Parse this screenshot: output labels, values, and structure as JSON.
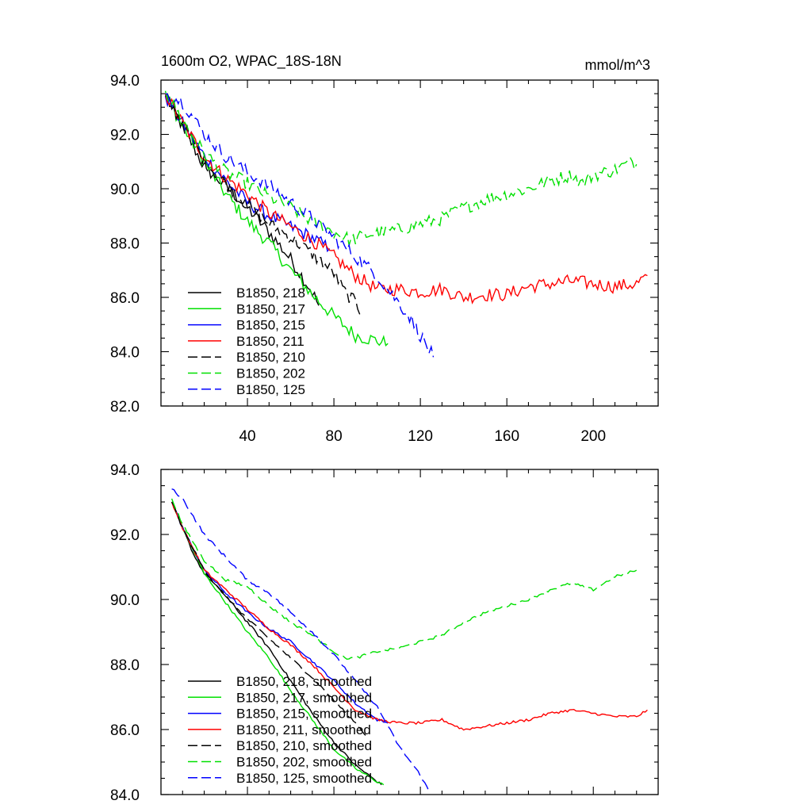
{
  "chart_data": [
    {
      "type": "line",
      "title": "1600m O2, WPAC_18S-18N",
      "units": "mmol/m^3",
      "xlabel": "",
      "ylabel": "",
      "xlim": [
        0,
        230
      ],
      "ylim": [
        82,
        94
      ],
      "x_major_ticks": [
        40,
        80,
        120,
        160,
        200
      ],
      "x_tick_labels": [
        "40",
        "80",
        "120",
        "160",
        "200"
      ],
      "y_major_ticks": [
        82,
        84,
        86,
        88,
        90,
        92,
        94
      ],
      "y_tick_labels": [
        "82.0",
        "84.0",
        "86.0",
        "88.0",
        "90.0",
        "92.0",
        "94.0"
      ],
      "legend_position": "bottom-left",
      "noise": 0.25,
      "series": [
        {
          "name": "B1850, 218",
          "color": "#000000",
          "dash": "solid",
          "points": [
            [
              2,
              93.4
            ],
            [
              10,
              92.3
            ],
            [
              20,
              90.8
            ],
            [
              30,
              90.1
            ],
            [
              40,
              89.3
            ],
            [
              50,
              88.4
            ],
            [
              60,
              87.4
            ],
            [
              65,
              86.8
            ],
            [
              70,
              86.2
            ],
            [
              73,
              85.7
            ]
          ]
        },
        {
          "name": "B1850, 217",
          "color": "#00e000",
          "dash": "solid",
          "points": [
            [
              2,
              93.5
            ],
            [
              10,
              92.3
            ],
            [
              20,
              91.0
            ],
            [
              30,
              89.8
            ],
            [
              40,
              88.8
            ],
            [
              50,
              88.0
            ],
            [
              60,
              87.0
            ],
            [
              70,
              86.1
            ],
            [
              80,
              85.3
            ],
            [
              90,
              84.6
            ],
            [
              100,
              84.4
            ],
            [
              105,
              84.3
            ]
          ]
        },
        {
          "name": "B1850, 215",
          "color": "#0000ff",
          "dash": "solid",
          "points": [
            [
              2,
              93.4
            ],
            [
              10,
              92.4
            ],
            [
              20,
              91.2
            ],
            [
              30,
              90.3
            ],
            [
              40,
              89.5
            ],
            [
              50,
              89.0
            ],
            [
              60,
              88.6
            ],
            [
              70,
              88.2
            ],
            [
              78,
              87.8
            ]
          ]
        },
        {
          "name": "B1850, 211",
          "color": "#ff0000",
          "dash": "solid",
          "points": [
            [
              2,
              93.5
            ],
            [
              10,
              92.4
            ],
            [
              20,
              91.2
            ],
            [
              30,
              90.4
            ],
            [
              40,
              89.8
            ],
            [
              50,
              89.1
            ],
            [
              60,
              88.6
            ],
            [
              70,
              88.1
            ],
            [
              80,
              87.5
            ],
            [
              90,
              86.8
            ],
            [
              100,
              86.3
            ],
            [
              110,
              86.3
            ],
            [
              120,
              86.2
            ],
            [
              130,
              86.3
            ],
            [
              140,
              86.0
            ],
            [
              150,
              86.1
            ],
            [
              160,
              86.1
            ],
            [
              170,
              86.4
            ],
            [
              180,
              86.5
            ],
            [
              190,
              86.6
            ],
            [
              200,
              86.5
            ],
            [
              210,
              86.4
            ],
            [
              220,
              86.5
            ],
            [
              225,
              86.8
            ]
          ]
        },
        {
          "name": "B1850, 210",
          "color": "#000000",
          "dash": "long",
          "points": [
            [
              2,
              93.4
            ],
            [
              10,
              92.4
            ],
            [
              20,
              91.0
            ],
            [
              30,
              90.2
            ],
            [
              40,
              89.4
            ],
            [
              50,
              88.7
            ],
            [
              60,
              88.2
            ],
            [
              70,
              87.6
            ],
            [
              80,
              86.9
            ],
            [
              85,
              86.2
            ],
            [
              90,
              85.8
            ],
            [
              93,
              85.4
            ]
          ]
        },
        {
          "name": "B1850, 202",
          "color": "#00e000",
          "dash": "long",
          "points": [
            [
              2,
              93.6
            ],
            [
              10,
              92.5
            ],
            [
              20,
              91.3
            ],
            [
              30,
              90.6
            ],
            [
              40,
              90.2
            ],
            [
              50,
              89.7
            ],
            [
              60,
              89.3
            ],
            [
              70,
              88.8
            ],
            [
              80,
              88.4
            ],
            [
              88,
              88.1
            ],
            [
              95,
              88.3
            ],
            [
              110,
              88.5
            ],
            [
              120,
              88.7
            ],
            [
              130,
              88.9
            ],
            [
              140,
              89.3
            ],
            [
              150,
              89.6
            ],
            [
              160,
              89.8
            ],
            [
              170,
              90.0
            ],
            [
              180,
              90.3
            ],
            [
              190,
              90.5
            ],
            [
              195,
              90.2
            ],
            [
              200,
              90.5
            ],
            [
              210,
              90.7
            ],
            [
              218,
              91.0
            ],
            [
              220,
              90.9
            ]
          ]
        },
        {
          "name": "B1850, 125",
          "color": "#0000ff",
          "dash": "long",
          "points": [
            [
              2,
              93.5
            ],
            [
              10,
              93.2
            ],
            [
              20,
              92.0
            ],
            [
              30,
              91.2
            ],
            [
              40,
              90.6
            ],
            [
              50,
              90.1
            ],
            [
              60,
              89.5
            ],
            [
              70,
              88.9
            ],
            [
              80,
              88.2
            ],
            [
              90,
              87.5
            ],
            [
              100,
              86.8
            ],
            [
              110,
              85.8
            ],
            [
              115,
              85.3
            ],
            [
              120,
              84.6
            ],
            [
              126,
              83.8
            ]
          ]
        }
      ]
    },
    {
      "type": "line",
      "title": "",
      "xlabel": "",
      "ylabel": "",
      "xlim": [
        0,
        230
      ],
      "ylim": [
        84,
        94
      ],
      "x_major_ticks": [
        40,
        80,
        120,
        160,
        200
      ],
      "y_major_ticks": [
        84,
        86,
        88,
        90,
        92,
        94
      ],
      "y_tick_labels": [
        "84.0",
        "86.0",
        "88.0",
        "90.0",
        "92.0",
        "94.0"
      ],
      "legend_position": "bottom-left",
      "noise": 0.04,
      "series": [
        {
          "name": "B1850, 218, smoothed",
          "color": "#000000",
          "dash": "solid",
          "points": [
            [
              5,
              93.0
            ],
            [
              10,
              92.2
            ],
            [
              15,
              91.4
            ],
            [
              20,
              90.8
            ],
            [
              30,
              90.1
            ],
            [
              40,
              89.3
            ],
            [
              50,
              88.5
            ],
            [
              60,
              87.5
            ],
            [
              70,
              86.5
            ],
            [
              80,
              85.6
            ],
            [
              90,
              84.9
            ],
            [
              100,
              84.4
            ],
            [
              102,
              84.3
            ]
          ]
        },
        {
          "name": "B1850, 217, smoothed",
          "color": "#00e000",
          "dash": "solid",
          "points": [
            [
              5,
              93.0
            ],
            [
              10,
              92.2
            ],
            [
              20,
              90.8
            ],
            [
              30,
              89.9
            ],
            [
              40,
              89.0
            ],
            [
              50,
              88.2
            ],
            [
              60,
              87.2
            ],
            [
              70,
              86.3
            ],
            [
              80,
              85.4
            ],
            [
              90,
              84.8
            ],
            [
              100,
              84.4
            ],
            [
              103,
              84.3
            ]
          ]
        },
        {
          "name": "B1850, 215, smoothed",
          "color": "#0000ff",
          "dash": "solid",
          "points": [
            [
              5,
              93.0
            ],
            [
              10,
              92.2
            ],
            [
              20,
              90.9
            ],
            [
              30,
              90.2
            ],
            [
              40,
              89.6
            ],
            [
              50,
              89.1
            ],
            [
              60,
              88.7
            ],
            [
              70,
              88.1
            ],
            [
              80,
              87.5
            ],
            [
              90,
              86.8
            ],
            [
              100,
              86.3
            ],
            [
              105,
              86.2
            ]
          ]
        },
        {
          "name": "B1850, 211, smoothed",
          "color": "#ff0000",
          "dash": "solid",
          "points": [
            [
              5,
              93.0
            ],
            [
              10,
              92.2
            ],
            [
              20,
              90.9
            ],
            [
              30,
              90.3
            ],
            [
              40,
              89.7
            ],
            [
              50,
              89.1
            ],
            [
              60,
              88.6
            ],
            [
              70,
              88.0
            ],
            [
              80,
              87.3
            ],
            [
              90,
              86.6
            ],
            [
              100,
              86.3
            ],
            [
              110,
              86.2
            ],
            [
              120,
              86.2
            ],
            [
              130,
              86.3
            ],
            [
              140,
              86.0
            ],
            [
              150,
              86.1
            ],
            [
              160,
              86.2
            ],
            [
              170,
              86.3
            ],
            [
              180,
              86.5
            ],
            [
              190,
              86.6
            ],
            [
              200,
              86.5
            ],
            [
              210,
              86.4
            ],
            [
              220,
              86.4
            ],
            [
              225,
              86.6
            ]
          ]
        },
        {
          "name": "B1850, 210, smoothed",
          "color": "#000000",
          "dash": "long",
          "points": [
            [
              5,
              93.0
            ],
            [
              10,
              92.2
            ],
            [
              20,
              90.9
            ],
            [
              30,
              90.1
            ],
            [
              40,
              89.4
            ],
            [
              50,
              88.8
            ],
            [
              60,
              88.2
            ],
            [
              70,
              87.6
            ],
            [
              80,
              86.9
            ],
            [
              90,
              86.2
            ],
            [
              95,
              85.8
            ]
          ]
        },
        {
          "name": "B1850, 202, smoothed",
          "color": "#00e000",
          "dash": "long",
          "points": [
            [
              5,
              93.1
            ],
            [
              10,
              92.3
            ],
            [
              20,
              91.2
            ],
            [
              30,
              90.6
            ],
            [
              40,
              90.4
            ],
            [
              50,
              89.8
            ],
            [
              60,
              89.3
            ],
            [
              70,
              88.9
            ],
            [
              80,
              88.4
            ],
            [
              85,
              88.2
            ],
            [
              90,
              88.2
            ],
            [
              100,
              88.4
            ],
            [
              110,
              88.5
            ],
            [
              120,
              88.7
            ],
            [
              130,
              88.9
            ],
            [
              140,
              89.3
            ],
            [
              150,
              89.6
            ],
            [
              160,
              89.8
            ],
            [
              170,
              90.0
            ],
            [
              180,
              90.3
            ],
            [
              190,
              90.5
            ],
            [
              200,
              90.3
            ],
            [
              210,
              90.7
            ],
            [
              220,
              90.9
            ]
          ]
        },
        {
          "name": "B1850, 125, smoothed",
          "color": "#0000ff",
          "dash": "long",
          "points": [
            [
              5,
              93.4
            ],
            [
              10,
              93.1
            ],
            [
              20,
              92.0
            ],
            [
              30,
              91.3
            ],
            [
              40,
              90.6
            ],
            [
              50,
              90.2
            ],
            [
              60,
              89.6
            ],
            [
              70,
              89.0
            ],
            [
              80,
              88.3
            ],
            [
              90,
              87.5
            ],
            [
              100,
              86.7
            ],
            [
              110,
              85.5
            ],
            [
              120,
              84.6
            ],
            [
              124,
              84.1
            ]
          ]
        }
      ]
    }
  ]
}
